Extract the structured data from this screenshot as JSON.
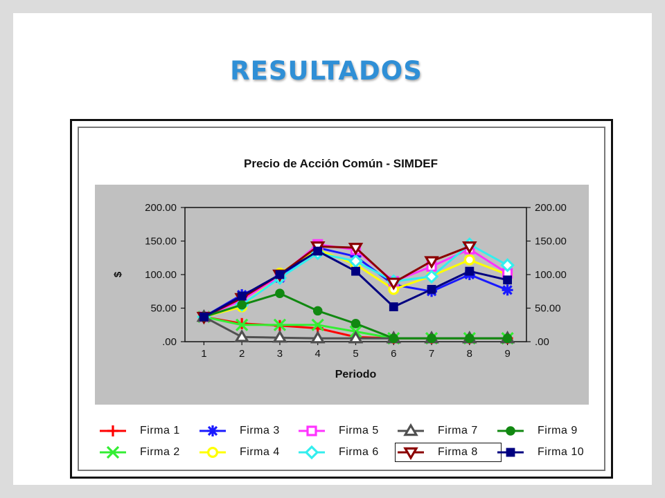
{
  "slide": {
    "title": "RESULTADOS"
  },
  "chart_data": {
    "type": "line",
    "title": "Precio de Acción Común - SIMDEF",
    "xlabel": "Periodo",
    "ylabel": "$",
    "categories": [
      "1",
      "2",
      "3",
      "4",
      "5",
      "6",
      "7",
      "8",
      "9"
    ],
    "ylim": [
      0,
      200
    ],
    "yticks": [
      ".00",
      "50.00",
      "100.00",
      "150.00",
      "200.00"
    ],
    "grid": false,
    "plot_background": "#c0c0c0",
    "legend_position": "bottom",
    "series": [
      {
        "name": "Firma 1",
        "color": "#ff0000",
        "marker": "plus",
        "values": [
          37,
          27,
          24,
          20,
          7,
          5,
          5,
          5,
          5
        ]
      },
      {
        "name": "Firma 2",
        "color": "#33ee33",
        "marker": "x",
        "values": [
          37,
          25,
          25,
          25,
          15,
          5,
          5,
          5,
          5
        ]
      },
      {
        "name": "Firma 3",
        "color": "#1a1aff",
        "marker": "star",
        "values": [
          37,
          70,
          95,
          140,
          127,
          85,
          75,
          100,
          77
        ]
      },
      {
        "name": "Firma 4",
        "color": "#ffff00",
        "marker": "circle-open",
        "values": [
          37,
          52,
          102,
          137,
          115,
          78,
          98,
          122,
          100
        ]
      },
      {
        "name": "Firma 5",
        "color": "#ff33ff",
        "marker": "square-open",
        "values": [
          37,
          62,
          98,
          145,
          137,
          90,
          112,
          138,
          102
        ]
      },
      {
        "name": "Firma 6",
        "color": "#33eeee",
        "marker": "diamond-open",
        "values": [
          37,
          55,
          95,
          132,
          120,
          90,
          97,
          145,
          114
        ]
      },
      {
        "name": "Firma 7",
        "color": "#505050",
        "marker": "triangle-open",
        "values": [
          37,
          7,
          6,
          5,
          5,
          5,
          5,
          5,
          5
        ]
      },
      {
        "name": "Firma 8",
        "color": "#8b0000",
        "marker": "triangle-down-open",
        "values": [
          37,
          65,
          100,
          142,
          140,
          88,
          120,
          142,
          null
        ]
      },
      {
        "name": "Firma 9",
        "color": "#118811",
        "marker": "circle-filled",
        "values": [
          37,
          55,
          72,
          46,
          27,
          5,
          5,
          5,
          5
        ]
      },
      {
        "name": "Firma 10",
        "color": "#000080",
        "marker": "square-filled",
        "values": [
          37,
          68,
          100,
          135,
          105,
          52,
          78,
          105,
          92
        ]
      }
    ]
  },
  "legend": {
    "items": [
      {
        "label": "Firma  1",
        "series": 0
      },
      {
        "label": "Firma  3",
        "series": 2
      },
      {
        "label": "Firma  5",
        "series": 4
      },
      {
        "label": "Firma  7",
        "series": 6
      },
      {
        "label": "Firma  9",
        "series": 8
      },
      {
        "label": "Firma  2",
        "series": 1
      },
      {
        "label": "Firma  4",
        "series": 3
      },
      {
        "label": "Firma  6",
        "series": 5
      },
      {
        "label": "Firma  8",
        "series": 7
      },
      {
        "label": "Firma  10",
        "series": 9
      }
    ]
  }
}
